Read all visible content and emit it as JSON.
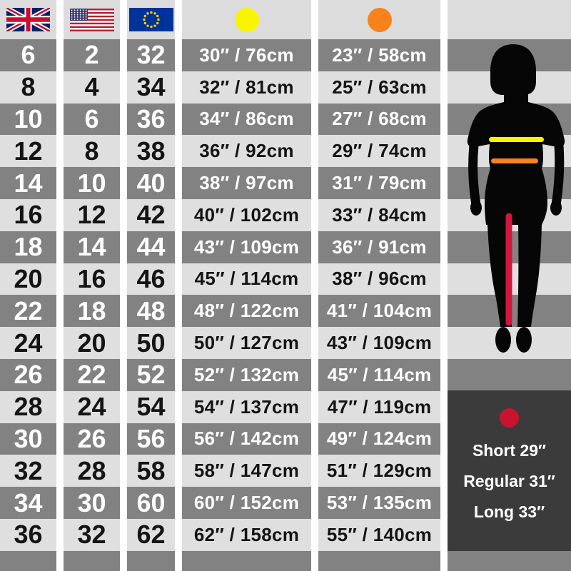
{
  "colors": {
    "row_dark": "#828282",
    "row_light": "#dfdfdf",
    "header_bg": "#dcdcdc",
    "box_bg": "#3b3b3b",
    "silhouette": "#060606",
    "waist_marker": "#fbf400",
    "hip_marker": "#f8821b",
    "inseam_dot": "#c9142f",
    "inseam_line": "#d2163c"
  },
  "header": {
    "column_icons": [
      "uk-flag",
      "us-flag",
      "eu-flag",
      "yellow-dot",
      "orange-dot"
    ]
  },
  "chart_data": {
    "type": "table",
    "columns": [
      "UK",
      "US",
      "EU",
      "Waist",
      "Hips"
    ],
    "column_icons": [
      "uk-flag",
      "us-flag",
      "eu-flag",
      "yellow-dot",
      "orange-dot"
    ],
    "rows": [
      [
        "6",
        "2",
        "32",
        "30″ / 76cm",
        "23″ / 58cm"
      ],
      [
        "8",
        "4",
        "34",
        "32″ / 81cm",
        "25″ / 63cm"
      ],
      [
        "10",
        "6",
        "36",
        "34″ / 86cm",
        "27″ / 68cm"
      ],
      [
        "12",
        "8",
        "38",
        "36″ / 92cm",
        "29″ / 74cm"
      ],
      [
        "14",
        "10",
        "40",
        "38″ / 97cm",
        "31″ / 79cm"
      ],
      [
        "16",
        "12",
        "42",
        "40″ / 102cm",
        "33″ / 84cm"
      ],
      [
        "18",
        "14",
        "44",
        "43″ / 109cm",
        "36″ / 91cm"
      ],
      [
        "20",
        "16",
        "46",
        "45″ / 114cm",
        "38″ / 96cm"
      ],
      [
        "22",
        "18",
        "48",
        "48″ / 122cm",
        "41″ / 104cm"
      ],
      [
        "24",
        "20",
        "50",
        "50″ / 127cm",
        "43″ / 109cm"
      ],
      [
        "26",
        "22",
        "52",
        "52″ / 132cm",
        "45″ / 114cm"
      ],
      [
        "28",
        "24",
        "54",
        "54″ / 137cm",
        "47″ / 119cm"
      ],
      [
        "30",
        "26",
        "56",
        "56″ / 142cm",
        "49″ / 124cm"
      ],
      [
        "32",
        "28",
        "58",
        "58″ / 147cm",
        "51″ / 129cm"
      ],
      [
        "34",
        "30",
        "60",
        "60″ / 152cm",
        "53″ / 135cm"
      ],
      [
        "36",
        "32",
        "62",
        "62″ / 158cm",
        "55″ / 140cm"
      ]
    ]
  },
  "inseam": {
    "icon": "red-dot",
    "options": [
      "Short 29″",
      "Regular 31″",
      "Long 33″"
    ]
  }
}
